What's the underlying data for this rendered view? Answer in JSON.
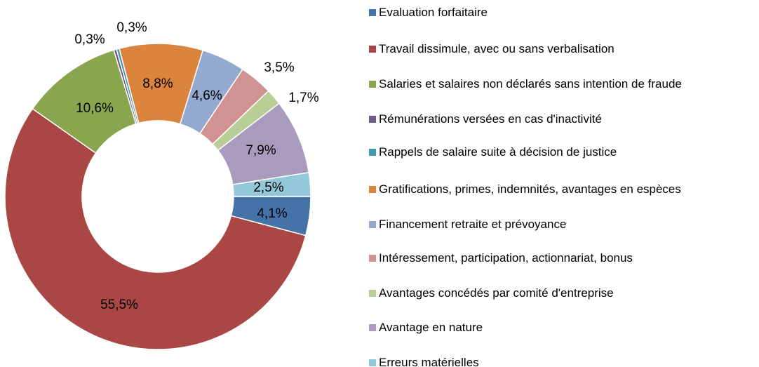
{
  "chart_data": {
    "type": "donut",
    "categories": [
      "Evaluation forfaitaire",
      "Travail dissimule, avec ou sans verbalisation",
      "Salaries et salaires non déclarés sans intention de fraude",
      "Rémunérations versées en cas d'inactivité",
      "Rappels de salaire suite à décision de justice",
      "Gratifications, primes, indemnités, avantages en espèces",
      "Financement retraite et prévoyance",
      "Intéressement, participation, actionnariat, bonus",
      "Avantages concédés par comité d'entreprise",
      "Avantage en nature",
      "Erreurs matérielles"
    ],
    "values": [
      4.1,
      55.5,
      10.6,
      0.3,
      0.3,
      8.8,
      4.6,
      3.5,
      1.7,
      7.9,
      2.5
    ],
    "value_labels": [
      "4,1%",
      "55,5%",
      "10,6%",
      "0,3%",
      "0,3%",
      "8,8%",
      "4,6%",
      "3,5%",
      "1,7%",
      "7,9%",
      "2,5%"
    ],
    "colors": [
      "#4572a7",
      "#aa4643",
      "#89a54e",
      "#71588f",
      "#4198af",
      "#db843d",
      "#93a9cf",
      "#d19392",
      "#b9cd96",
      "#a99bbd",
      "#92c8d9"
    ],
    "legend": "right"
  }
}
